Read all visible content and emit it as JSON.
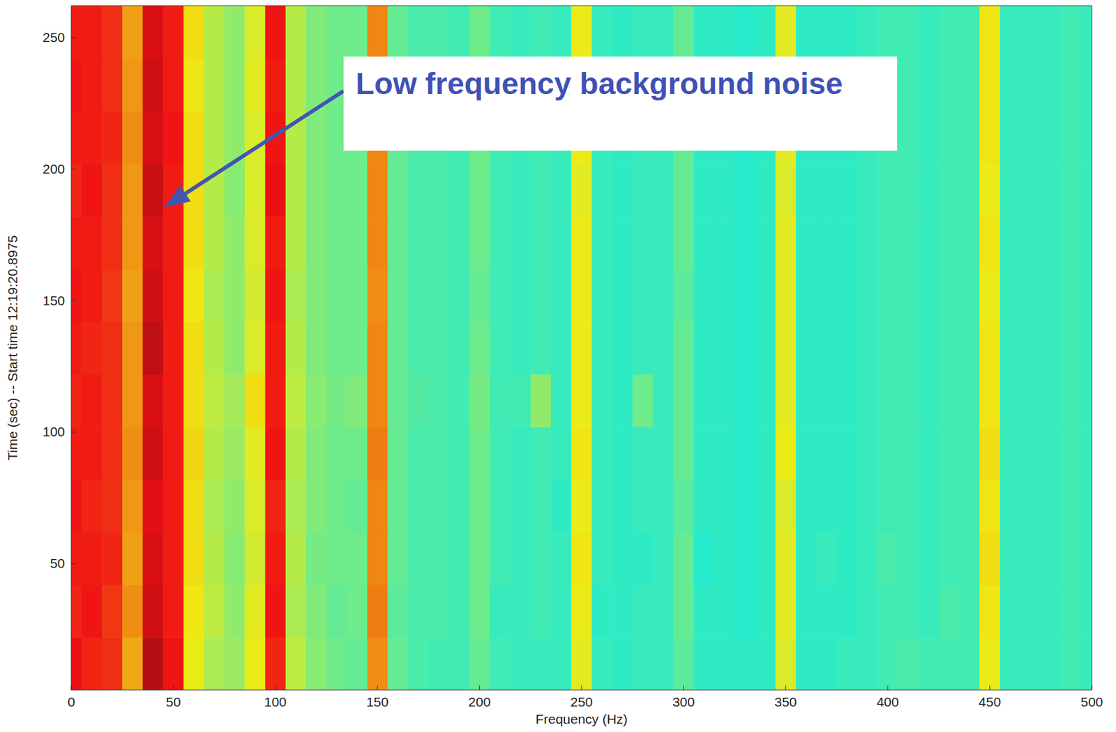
{
  "chart_data": {
    "type": "heatmap",
    "x_label": "Frequency (Hz)",
    "y_label": "Time (sec) -- Start time 12:19:20.8975",
    "x": [
      0,
      10,
      20,
      30,
      40,
      50,
      60,
      70,
      80,
      90,
      100,
      110,
      120,
      130,
      140,
      150,
      160,
      170,
      180,
      190,
      200,
      210,
      220,
      230,
      240,
      250,
      260,
      270,
      280,
      290,
      300,
      310,
      320,
      330,
      340,
      350,
      360,
      370,
      380,
      390,
      400,
      410,
      420,
      430,
      440,
      450,
      460,
      470,
      480,
      490,
      500
    ],
    "y": [
      12,
      32,
      52,
      72,
      92,
      112,
      132,
      152,
      172,
      192,
      212,
      232,
      252
    ],
    "values": [
      [
        88,
        85,
        84,
        70,
        94,
        87,
        62,
        55,
        53,
        62,
        85,
        57,
        51,
        48,
        47,
        73,
        47,
        44,
        43,
        43,
        47,
        43,
        42,
        42,
        42,
        61,
        42,
        41,
        42,
        42,
        46,
        41,
        41,
        41,
        41,
        60,
        41,
        41,
        42,
        42,
        43,
        44,
        43,
        43,
        43,
        62,
        42,
        42,
        42,
        43,
        42
      ],
      [
        85,
        87,
        83,
        73,
        91,
        86,
        63,
        57,
        52,
        61,
        87,
        55,
        50,
        47,
        48,
        75,
        46,
        44,
        44,
        43,
        48,
        42,
        42,
        43,
        42,
        62,
        41,
        41,
        42,
        42,
        47,
        41,
        41,
        40,
        41,
        61,
        41,
        41,
        41,
        42,
        43,
        43,
        42,
        44,
        43,
        63,
        42,
        42,
        42,
        43,
        42
      ],
      [
        86,
        86,
        85,
        71,
        90,
        86,
        64,
        56,
        51,
        59,
        86,
        56,
        49,
        48,
        48,
        74,
        47,
        44,
        44,
        43,
        48,
        43,
        42,
        43,
        42,
        63,
        42,
        41,
        41,
        42,
        47,
        40,
        41,
        40,
        41,
        61,
        41,
        42,
        41,
        42,
        44,
        43,
        42,
        43,
        43,
        64,
        42,
        42,
        42,
        43,
        42
      ],
      [
        87,
        85,
        84,
        72,
        89,
        86,
        64,
        55,
        52,
        60,
        85,
        55,
        50,
        48,
        47,
        74,
        47,
        44,
        44,
        43,
        48,
        43,
        42,
        43,
        41,
        62,
        42,
        41,
        42,
        42,
        46,
        41,
        41,
        40,
        41,
        60,
        41,
        41,
        41,
        42,
        43,
        43,
        42,
        43,
        43,
        63,
        42,
        42,
        42,
        43,
        42
      ],
      [
        86,
        86,
        84,
        73,
        91,
        86,
        65,
        56,
        53,
        61,
        87,
        56,
        50,
        48,
        48,
        75,
        47,
        44,
        44,
        43,
        48,
        43,
        42,
        43,
        42,
        63,
        42,
        41,
        42,
        42,
        47,
        41,
        41,
        40,
        41,
        62,
        41,
        41,
        41,
        42,
        43,
        43,
        42,
        43,
        43,
        64,
        42,
        42,
        42,
        43,
        42
      ],
      [
        85,
        86,
        84,
        72,
        90,
        86,
        64,
        57,
        54,
        64,
        86,
        57,
        51,
        49,
        50,
        74,
        47,
        45,
        44,
        43,
        49,
        43,
        43,
        52,
        42,
        62,
        42,
        41,
        48,
        42,
        47,
        41,
        41,
        40,
        41,
        61,
        41,
        41,
        41,
        42,
        43,
        43,
        42,
        43,
        43,
        63,
        42,
        42,
        42,
        43,
        42
      ],
      [
        86,
        85,
        84,
        72,
        93,
        86,
        64,
        56,
        52,
        60,
        86,
        56,
        50,
        48,
        48,
        74,
        47,
        44,
        44,
        43,
        48,
        43,
        42,
        43,
        42,
        62,
        42,
        41,
        42,
        42,
        47,
        41,
        41,
        40,
        41,
        61,
        41,
        41,
        41,
        42,
        43,
        43,
        42,
        43,
        43,
        63,
        42,
        42,
        42,
        43,
        42
      ],
      [
        87,
        86,
        83,
        71,
        91,
        86,
        63,
        55,
        52,
        59,
        87,
        55,
        50,
        48,
        48,
        73,
        47,
        44,
        44,
        43,
        47,
        43,
        42,
        43,
        42,
        62,
        42,
        41,
        42,
        42,
        46,
        41,
        41,
        40,
        41,
        61,
        41,
        41,
        41,
        42,
        43,
        43,
        42,
        43,
        43,
        62,
        42,
        42,
        42,
        43,
        42
      ],
      [
        86,
        86,
        84,
        72,
        90,
        86,
        64,
        56,
        52,
        60,
        86,
        56,
        50,
        48,
        48,
        74,
        47,
        44,
        44,
        43,
        48,
        43,
        42,
        43,
        42,
        62,
        42,
        41,
        42,
        42,
        47,
        41,
        41,
        40,
        41,
        61,
        41,
        41,
        41,
        42,
        43,
        43,
        42,
        43,
        43,
        63,
        42,
        42,
        42,
        43,
        42
      ],
      [
        85,
        87,
        84,
        72,
        92,
        86,
        64,
        56,
        51,
        60,
        88,
        56,
        50,
        48,
        48,
        74,
        47,
        44,
        44,
        43,
        48,
        43,
        42,
        43,
        42,
        61,
        42,
        41,
        42,
        42,
        47,
        41,
        41,
        40,
        41,
        60,
        41,
        41,
        41,
        42,
        43,
        43,
        42,
        43,
        43,
        62,
        42,
        42,
        42,
        43,
        42
      ],
      [
        86,
        86,
        85,
        73,
        90,
        87,
        64,
        56,
        52,
        60,
        87,
        56,
        50,
        48,
        48,
        74,
        47,
        44,
        44,
        43,
        48,
        43,
        42,
        43,
        42,
        62,
        42,
        41,
        42,
        42,
        47,
        41,
        41,
        40,
        41,
        61,
        41,
        41,
        41,
        42,
        43,
        43,
        42,
        43,
        43,
        63,
        42,
        42,
        42,
        43,
        42
      ],
      [
        87,
        86,
        84,
        72,
        91,
        86,
        63,
        56,
        52,
        61,
        86,
        56,
        50,
        48,
        48,
        73,
        47,
        44,
        44,
        43,
        48,
        43,
        42,
        43,
        42,
        62,
        42,
        41,
        42,
        42,
        47,
        41,
        41,
        40,
        41,
        61,
        41,
        41,
        41,
        42,
        43,
        43,
        42,
        43,
        43,
        63,
        42,
        42,
        42,
        43,
        42
      ],
      [
        86,
        86,
        84,
        71,
        90,
        86,
        64,
        56,
        52,
        60,
        87,
        56,
        50,
        48,
        48,
        74,
        47,
        44,
        44,
        43,
        48,
        43,
        42,
        43,
        42,
        62,
        42,
        41,
        42,
        42,
        47,
        41,
        41,
        40,
        41,
        61,
        41,
        41,
        41,
        42,
        43,
        43,
        42,
        43,
        43,
        63,
        42,
        42,
        42,
        43,
        42
      ]
    ],
    "color_range": [
      0,
      100
    ],
    "xlim": [
      0,
      500
    ],
    "ylim": [
      2,
      262
    ],
    "xticks": [
      0,
      50,
      100,
      150,
      200,
      250,
      300,
      350,
      400,
      450,
      500
    ],
    "yticks": [
      50,
      100,
      150,
      200,
      250
    ],
    "annotations": [
      {
        "text": "Low frequency background noise"
      }
    ]
  }
}
